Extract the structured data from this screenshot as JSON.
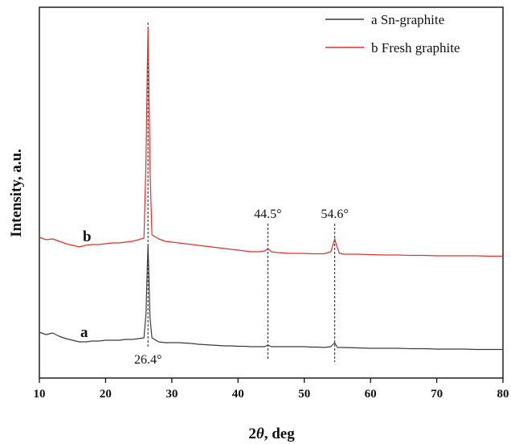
{
  "chart_data": {
    "type": "line",
    "xlabel_pre": "2",
    "xlabel_theta": "θ",
    "xlabel_post": ", deg",
    "ylabel": "Intensity, a.u.",
    "xlim": [
      10,
      80
    ],
    "xticks": [
      10,
      20,
      30,
      40,
      50,
      60,
      70,
      80
    ],
    "yticks_shown": false,
    "grid": false,
    "legend_position": "top-right",
    "series": [
      {
        "name": "a Sn-graphite",
        "tag": "a",
        "color": "#3a3a3a",
        "points": [
          [
            10,
            413
          ],
          [
            11,
            416
          ],
          [
            12,
            414
          ],
          [
            13,
            418
          ],
          [
            14,
            421
          ],
          [
            15,
            423
          ],
          [
            16,
            425
          ],
          [
            17,
            425
          ],
          [
            18,
            424
          ],
          [
            19,
            424
          ],
          [
            20,
            423
          ],
          [
            21,
            423
          ],
          [
            22,
            423
          ],
          [
            23,
            422
          ],
          [
            24,
            422
          ],
          [
            25,
            421
          ],
          [
            25.8,
            420
          ],
          [
            26.1,
            390
          ],
          [
            26.3,
            330
          ],
          [
            26.4,
            305
          ],
          [
            26.5,
            330
          ],
          [
            26.7,
            395
          ],
          [
            27,
            420
          ],
          [
            28,
            425
          ],
          [
            29,
            426
          ],
          [
            30,
            426
          ],
          [
            31,
            426
          ],
          [
            32,
            426.5
          ],
          [
            33,
            427
          ],
          [
            34,
            428
          ],
          [
            35,
            428.5
          ],
          [
            36,
            429
          ],
          [
            37,
            429.5
          ],
          [
            38,
            430
          ],
          [
            39,
            430
          ],
          [
            40,
            430.5
          ],
          [
            41,
            430.5
          ],
          [
            42,
            431
          ],
          [
            43,
            431
          ],
          [
            44,
            431
          ],
          [
            44.5,
            429
          ],
          [
            45,
            431
          ],
          [
            46,
            431
          ],
          [
            47,
            431
          ],
          [
            48,
            431
          ],
          [
            49,
            431
          ],
          [
            50,
            431
          ],
          [
            51,
            431.5
          ],
          [
            52,
            431.5
          ],
          [
            53,
            432
          ],
          [
            54,
            431
          ],
          [
            54.6,
            426
          ],
          [
            55,
            432
          ],
          [
            56,
            432
          ],
          [
            58,
            432.5
          ],
          [
            60,
            433
          ],
          [
            62,
            433
          ],
          [
            64,
            433
          ],
          [
            66,
            433.5
          ],
          [
            68,
            433.5
          ],
          [
            70,
            434
          ],
          [
            72,
            434
          ],
          [
            74,
            434
          ],
          [
            76,
            434.5
          ],
          [
            78,
            434.5
          ],
          [
            80,
            434.5
          ]
        ]
      },
      {
        "name": "b Fresh graphite",
        "tag": "b",
        "color": "#e03030",
        "points": [
          [
            10,
            295
          ],
          [
            11,
            298
          ],
          [
            12,
            297
          ],
          [
            13,
            300
          ],
          [
            14,
            303
          ],
          [
            15,
            305
          ],
          [
            16,
            307
          ],
          [
            17,
            305
          ],
          [
            18,
            304
          ],
          [
            19,
            304
          ],
          [
            20,
            303
          ],
          [
            21,
            302
          ],
          [
            22,
            302
          ],
          [
            23,
            301
          ],
          [
            24,
            300
          ],
          [
            25,
            298
          ],
          [
            25.8,
            296
          ],
          [
            26.1,
            200
          ],
          [
            26.3,
            80
          ],
          [
            26.4,
            35
          ],
          [
            26.5,
            80
          ],
          [
            26.7,
            210
          ],
          [
            27,
            292
          ],
          [
            28,
            297
          ],
          [
            29,
            300
          ],
          [
            30,
            301
          ],
          [
            31,
            302
          ],
          [
            32,
            303
          ],
          [
            33,
            304
          ],
          [
            34,
            305
          ],
          [
            35,
            306
          ],
          [
            36,
            307
          ],
          [
            37,
            308
          ],
          [
            38,
            309
          ],
          [
            39,
            310
          ],
          [
            40,
            311
          ],
          [
            41,
            312
          ],
          [
            42,
            313
          ],
          [
            43,
            313
          ],
          [
            44,
            312
          ],
          [
            44.5,
            309
          ],
          [
            45,
            313
          ],
          [
            46,
            314
          ],
          [
            47,
            314.5
          ],
          [
            48,
            315
          ],
          [
            49,
            315
          ],
          [
            50,
            315
          ],
          [
            51,
            315.5
          ],
          [
            52,
            315.5
          ],
          [
            53,
            315.5
          ],
          [
            54,
            313
          ],
          [
            54.3,
            305
          ],
          [
            54.6,
            297
          ],
          [
            54.9,
            306
          ],
          [
            55.3,
            315
          ],
          [
            56,
            316
          ],
          [
            58,
            316
          ],
          [
            60,
            316.5
          ],
          [
            62,
            317
          ],
          [
            64,
            317
          ],
          [
            66,
            317.5
          ],
          [
            68,
            317.5
          ],
          [
            70,
            318
          ],
          [
            72,
            318
          ],
          [
            74,
            318
          ],
          [
            76,
            318
          ],
          [
            78,
            318.5
          ],
          [
            80,
            318.5
          ]
        ]
      }
    ],
    "peak_lines": [
      {
        "x": 26.4,
        "label": "26.4°"
      },
      {
        "x": 44.5,
        "label": "44.5°"
      },
      {
        "x": 54.6,
        "label": "54.6°"
      }
    ]
  }
}
